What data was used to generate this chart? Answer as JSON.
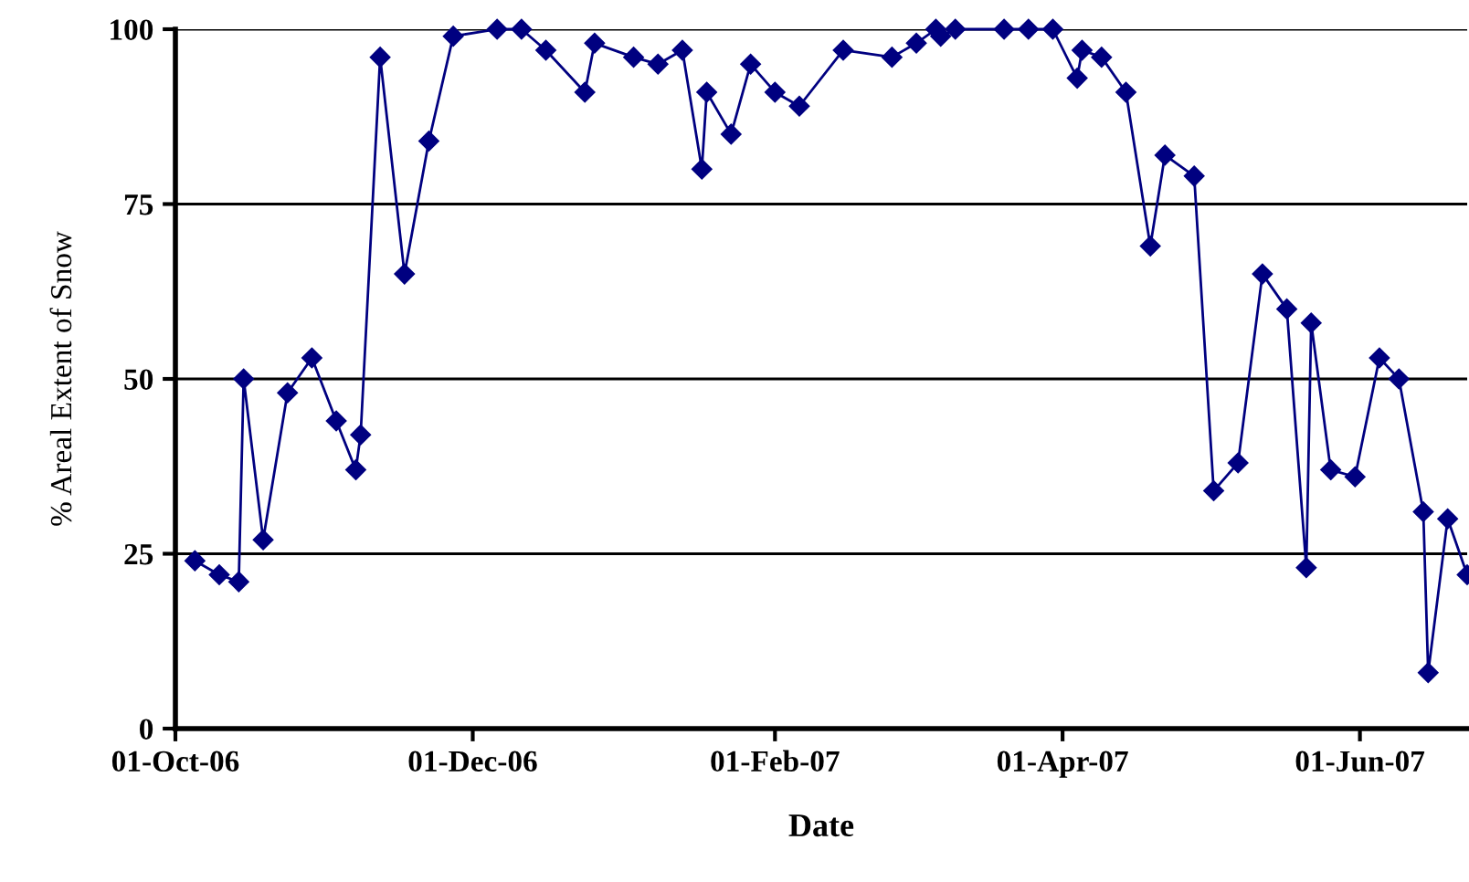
{
  "chart_data": {
    "type": "line",
    "xlabel": "Date",
    "ylabel": "% Areal Extent of Snow",
    "x": [
      "2006-10-05",
      "2006-10-10",
      "2006-10-14",
      "2006-10-15",
      "2006-10-19",
      "2006-10-24",
      "2006-10-29",
      "2006-11-03",
      "2006-11-07",
      "2006-11-08",
      "2006-11-12",
      "2006-11-17",
      "2006-11-22",
      "2006-11-27",
      "2006-12-06",
      "2006-12-11",
      "2006-12-16",
      "2006-12-24",
      "2006-12-26",
      "2007-01-03",
      "2007-01-08",
      "2007-01-13",
      "2007-01-17",
      "2007-01-18",
      "2007-01-23",
      "2007-01-27",
      "2007-02-01",
      "2007-02-06",
      "2007-02-15",
      "2007-02-25",
      "2007-03-02",
      "2007-03-06",
      "2007-03-07",
      "2007-03-10",
      "2007-03-20",
      "2007-03-25",
      "2007-03-30",
      "2007-04-04",
      "2007-04-05",
      "2007-04-09",
      "2007-04-14",
      "2007-04-19",
      "2007-04-22",
      "2007-04-28",
      "2007-05-02",
      "2007-05-07",
      "2007-05-12",
      "2007-05-17",
      "2007-05-21",
      "2007-05-22",
      "2007-05-26",
      "2007-05-31",
      "2007-06-05",
      "2007-06-09",
      "2007-06-14",
      "2007-06-15",
      "2007-06-19",
      "2007-06-23"
    ],
    "series": [
      {
        "color": "#000080",
        "values": [
          24,
          22,
          21,
          50,
          27,
          48,
          53,
          44,
          37,
          42,
          96,
          65,
          84,
          99,
          100,
          100,
          97,
          91,
          98,
          96,
          95,
          97,
          80,
          91,
          85,
          95,
          91,
          89,
          97,
          96,
          98,
          100,
          99,
          100,
          100,
          100,
          100,
          93,
          97,
          96,
          91,
          69,
          82,
          79,
          34,
          38,
          65,
          60,
          23,
          58,
          37,
          36,
          53,
          50,
          31,
          8,
          30,
          22
        ]
      }
    ],
    "xlim": [
      "2006-10-01",
      "2007-06-23"
    ],
    "xticks": [
      {
        "value": "2006-10-01",
        "label": "01-Oct-06"
      },
      {
        "value": "2006-12-01",
        "label": "01-Dec-06"
      },
      {
        "value": "2007-02-01",
        "label": "01-Feb-07"
      },
      {
        "value": "2007-04-01",
        "label": "01-Apr-07"
      },
      {
        "value": "2007-06-01",
        "label": "01-Jun-07"
      }
    ],
    "ylim": [
      0,
      100
    ],
    "yticks": [
      0,
      25,
      50,
      75,
      100
    ],
    "grid": "y",
    "marker": "diamond",
    "line_style": "solid"
  }
}
